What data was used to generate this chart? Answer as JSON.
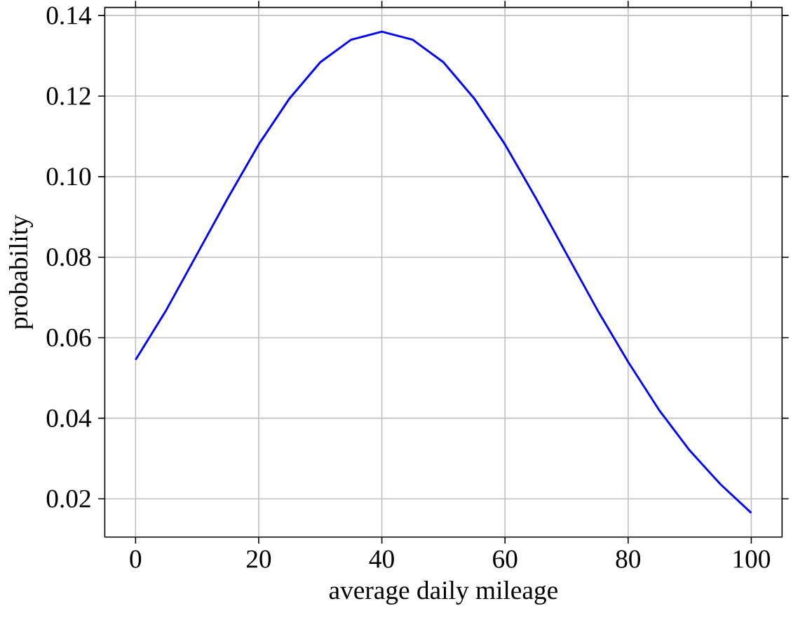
{
  "chart_data": {
    "type": "line",
    "xlabel": "average daily mileage",
    "ylabel": "probability",
    "x": [
      0,
      5,
      10,
      15,
      20,
      25,
      30,
      35,
      40,
      45,
      50,
      55,
      60,
      65,
      70,
      75,
      80,
      85,
      90,
      95,
      100
    ],
    "series": [
      {
        "color": "#0000ff",
        "values": [
          0.0545,
          0.0669,
          0.0808,
          0.0947,
          0.108,
          0.1194,
          0.1284,
          0.134,
          0.136,
          0.134,
          0.1284,
          0.1194,
          0.108,
          0.0947,
          0.0808,
          0.0669,
          0.054,
          0.0421,
          0.032,
          0.0236,
          0.0165
        ]
      }
    ],
    "xlim": [
      -5,
      105
    ],
    "ylim": [
      0.0105,
      0.142
    ],
    "xticks": [
      0,
      20,
      40,
      60,
      80,
      100
    ],
    "yticks": [
      0.02,
      0.04,
      0.06,
      0.08,
      {
        "value": 0.1,
        "label": "0.10"
      },
      0.12,
      0.14
    ],
    "grid": true,
    "marker": "none",
    "line_style": "solid"
  }
}
